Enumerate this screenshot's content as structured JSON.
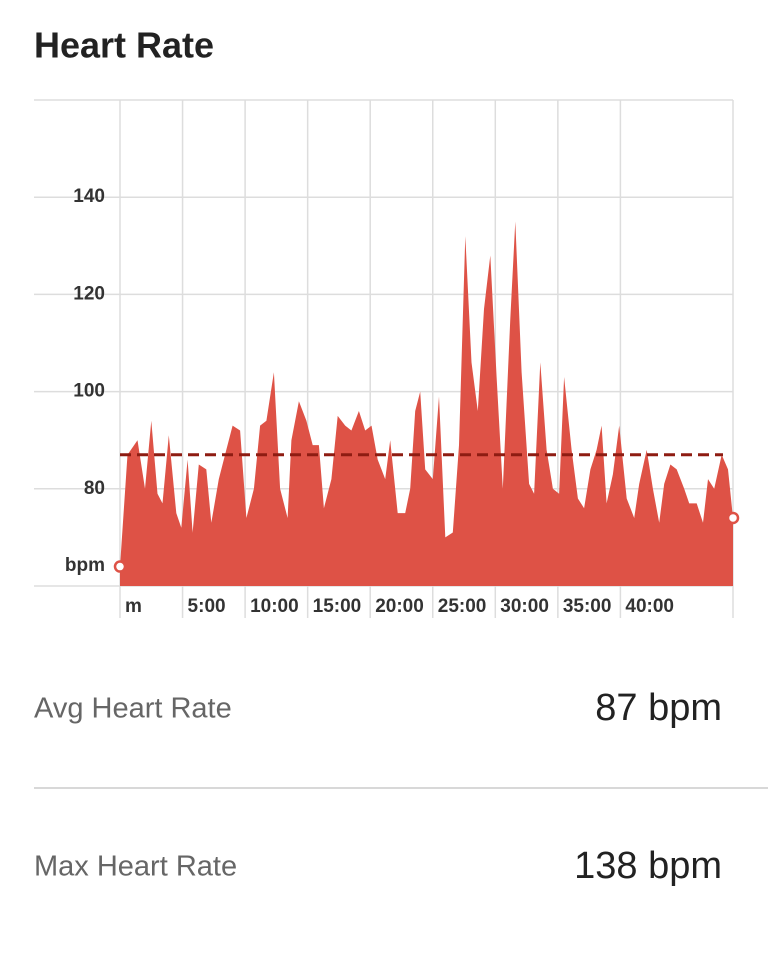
{
  "header": {
    "title": "Heart Rate"
  },
  "chart_data": {
    "type": "area",
    "y_label": "bpm",
    "color": "#de5246",
    "average_color": "#8e1c12",
    "grid": true,
    "x": [
      0,
      0.6,
      1.4,
      2.0,
      2.5,
      3.0,
      3.4,
      3.9,
      4.5,
      4.9,
      5.4,
      5.8,
      6.3,
      6.9,
      7.3,
      7.9,
      8.5,
      9.0,
      9.6,
      10.1,
      10.7,
      11.2,
      11.7,
      12.3,
      12.8,
      13.4,
      13.7,
      14.3,
      14.9,
      15.4,
      15.9,
      16.3,
      16.9,
      17.4,
      18.0,
      18.5,
      19.1,
      19.6,
      20.1,
      20.6,
      21.2,
      21.6,
      22.2,
      22.8,
      23.2,
      23.6,
      24.0,
      24.4,
      25.0,
      25.5,
      26.0,
      26.6,
      27.1,
      27.6,
      28.1,
      28.6,
      29.1,
      29.6,
      30.1,
      30.6,
      31.2,
      31.6,
      32.1,
      32.7,
      33.1,
      33.6,
      34.1,
      34.6,
      35.1,
      35.5,
      36.1,
      36.6,
      37.1,
      37.6,
      38.1,
      38.5,
      38.9,
      39.4,
      39.9,
      40.5,
      41.1,
      41.5,
      42.1,
      42.6,
      43.1,
      43.5,
      44.0,
      44.5,
      45.1,
      45.5,
      46.1,
      46.6,
      47.0,
      47.5,
      48.1,
      48.6,
      49.0
    ],
    "values": [
      64,
      87,
      90,
      80,
      94,
      79,
      77,
      91,
      75,
      72,
      86,
      71,
      85,
      84,
      73,
      82,
      88,
      93,
      92,
      74,
      80,
      93,
      94,
      104,
      80,
      74,
      90,
      98,
      94,
      89,
      89,
      76,
      82,
      95,
      93,
      92,
      96,
      92,
      93,
      86,
      82,
      90,
      75,
      75,
      80,
      96,
      100,
      84,
      82,
      99,
      70,
      71,
      89,
      132,
      106,
      96,
      117,
      128,
      103,
      80,
      115,
      135,
      104,
      81,
      79,
      106,
      88,
      80,
      79,
      103,
      88,
      78,
      76,
      84,
      88,
      93,
      77,
      83,
      93,
      78,
      74,
      81,
      88,
      80,
      73,
      81,
      85,
      84,
      80,
      77,
      77,
      73,
      82,
      80,
      87,
      84,
      74
    ],
    "average": 87,
    "xlim": [
      0,
      49
    ],
    "xticks": [
      {
        "value": 0,
        "label": "m"
      },
      {
        "value": 5,
        "label": "5:00"
      },
      {
        "value": 10,
        "label": "10:00"
      },
      {
        "value": 15,
        "label": "15:00"
      },
      {
        "value": 20,
        "label": "20:00"
      },
      {
        "value": 25,
        "label": "25:00"
      },
      {
        "value": 30,
        "label": "30:00"
      },
      {
        "value": 35,
        "label": "35:00"
      },
      {
        "value": 40,
        "label": "40:00"
      }
    ],
    "ylim": [
      60,
      160
    ],
    "yticks": [
      80,
      100,
      120,
      140
    ]
  },
  "stats": [
    {
      "label": "Avg Heart Rate",
      "value": "87 bpm"
    },
    {
      "label": "Max Heart Rate",
      "value": "138 bpm"
    }
  ]
}
